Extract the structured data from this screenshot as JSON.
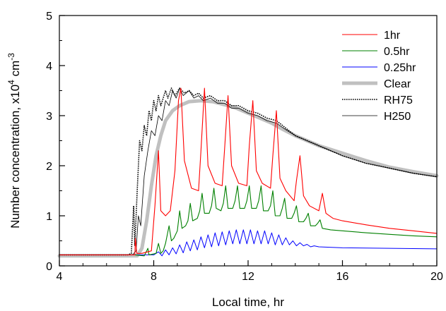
{
  "chart_data": {
    "type": "line",
    "title": "",
    "xlabel": "Local time, hr",
    "ylabel": {
      "prefix": "Number concentration, x10",
      "sup1": "4",
      "mid": " cm",
      "sup2": "-3"
    },
    "xlim": [
      4,
      20
    ],
    "ylim": [
      0,
      5
    ],
    "xticks": [
      4,
      8,
      12,
      16,
      20
    ],
    "yticks": [
      0,
      1,
      2,
      3,
      4,
      5
    ],
    "grid": false,
    "legend_position": "top-right",
    "series": [
      {
        "name": "1hr",
        "color": "#ff0000",
        "style": "solid",
        "width": 1.1,
        "points": [
          [
            4,
            0.22
          ],
          [
            7.0,
            0.22
          ],
          [
            7.2,
            0.22
          ],
          [
            7.22,
            0.55
          ],
          [
            7.28,
            0.25
          ],
          [
            7.5,
            0.25
          ],
          [
            7.9,
            0.3
          ],
          [
            8.05,
            1.2
          ],
          [
            8.2,
            2.3
          ],
          [
            8.3,
            1.1
          ],
          [
            8.5,
            1.0
          ],
          [
            8.7,
            1.1
          ],
          [
            8.9,
            1.9
          ],
          [
            9.05,
            3.3
          ],
          [
            9.15,
            3.55
          ],
          [
            9.3,
            2.1
          ],
          [
            9.6,
            1.55
          ],
          [
            9.9,
            1.5
          ],
          [
            10.0,
            2.3
          ],
          [
            10.15,
            3.55
          ],
          [
            10.3,
            2.0
          ],
          [
            10.6,
            1.65
          ],
          [
            10.9,
            1.6
          ],
          [
            11.0,
            2.3
          ],
          [
            11.15,
            3.4
          ],
          [
            11.3,
            2.0
          ],
          [
            11.6,
            1.65
          ],
          [
            11.95,
            1.6
          ],
          [
            12.05,
            2.4
          ],
          [
            12.2,
            3.3
          ],
          [
            12.35,
            1.9
          ],
          [
            12.6,
            1.65
          ],
          [
            12.95,
            1.55
          ],
          [
            13.05,
            2.2
          ],
          [
            13.2,
            3.1
          ],
          [
            13.35,
            1.75
          ],
          [
            13.6,
            1.5
          ],
          [
            13.95,
            1.3
          ],
          [
            14.05,
            1.7
          ],
          [
            14.2,
            2.2
          ],
          [
            14.35,
            1.4
          ],
          [
            14.6,
            1.2
          ],
          [
            15.0,
            1.1
          ],
          [
            15.15,
            1.45
          ],
          [
            15.3,
            1.05
          ],
          [
            15.6,
            0.95
          ],
          [
            16.0,
            0.9
          ],
          [
            17.0,
            0.82
          ],
          [
            18.0,
            0.75
          ],
          [
            19.0,
            0.7
          ],
          [
            20,
            0.65
          ]
        ]
      },
      {
        "name": "0.5hr",
        "color": "#008000",
        "style": "solid",
        "width": 1.1,
        "points": [
          [
            4,
            0.22
          ],
          [
            7.2,
            0.22
          ],
          [
            7.6,
            0.2
          ],
          [
            7.75,
            0.35
          ],
          [
            7.8,
            0.22
          ],
          [
            8.1,
            0.25
          ],
          [
            8.2,
            0.45
          ],
          [
            8.3,
            0.25
          ],
          [
            8.4,
            0.3
          ],
          [
            8.5,
            0.45
          ],
          [
            8.65,
            0.8
          ],
          [
            8.75,
            0.5
          ],
          [
            8.85,
            0.55
          ],
          [
            9.0,
            0.7
          ],
          [
            9.1,
            1.1
          ],
          [
            9.2,
            0.75
          ],
          [
            9.35,
            0.8
          ],
          [
            9.45,
            0.9
          ],
          [
            9.55,
            1.25
          ],
          [
            9.65,
            0.9
          ],
          [
            9.85,
            0.95
          ],
          [
            9.95,
            1.1
          ],
          [
            10.05,
            1.45
          ],
          [
            10.15,
            1.05
          ],
          [
            10.35,
            1.05
          ],
          [
            10.45,
            1.2
          ],
          [
            10.55,
            1.55
          ],
          [
            10.65,
            1.15
          ],
          [
            10.85,
            1.1
          ],
          [
            10.95,
            1.25
          ],
          [
            11.05,
            1.6
          ],
          [
            11.15,
            1.15
          ],
          [
            11.35,
            1.15
          ],
          [
            11.45,
            1.3
          ],
          [
            11.55,
            1.6
          ],
          [
            11.65,
            1.15
          ],
          [
            11.85,
            1.15
          ],
          [
            11.95,
            1.3
          ],
          [
            12.05,
            1.6
          ],
          [
            12.15,
            1.15
          ],
          [
            12.35,
            1.15
          ],
          [
            12.45,
            1.3
          ],
          [
            12.55,
            1.6
          ],
          [
            12.65,
            1.1
          ],
          [
            12.85,
            1.1
          ],
          [
            12.95,
            1.2
          ],
          [
            13.05,
            1.5
          ],
          [
            13.15,
            1.0
          ],
          [
            13.35,
            1.0
          ],
          [
            13.45,
            1.15
          ],
          [
            13.55,
            1.35
          ],
          [
            13.65,
            0.95
          ],
          [
            13.85,
            0.95
          ],
          [
            13.95,
            1.05
          ],
          [
            14.05,
            1.2
          ],
          [
            14.15,
            0.88
          ],
          [
            14.35,
            0.88
          ],
          [
            14.45,
            0.95
          ],
          [
            14.55,
            1.05
          ],
          [
            14.65,
            0.8
          ],
          [
            14.85,
            0.8
          ],
          [
            14.95,
            0.85
          ],
          [
            15.05,
            0.92
          ],
          [
            15.15,
            0.75
          ],
          [
            15.5,
            0.72
          ],
          [
            16.0,
            0.7
          ],
          [
            17.0,
            0.66
          ],
          [
            18.0,
            0.63
          ],
          [
            19.0,
            0.6
          ],
          [
            20,
            0.58
          ]
        ]
      },
      {
        "name": "0.25hr",
        "color": "#0000ff",
        "style": "solid",
        "width": 1.0,
        "points": [
          [
            4,
            0.22
          ],
          [
            7.5,
            0.22
          ],
          [
            8.0,
            0.22
          ],
          [
            8.2,
            0.28
          ],
          [
            8.35,
            0.2
          ],
          [
            8.5,
            0.32
          ],
          [
            8.65,
            0.22
          ],
          [
            8.8,
            0.36
          ],
          [
            8.95,
            0.24
          ],
          [
            9.1,
            0.42
          ],
          [
            9.25,
            0.26
          ],
          [
            9.4,
            0.48
          ],
          [
            9.55,
            0.3
          ],
          [
            9.7,
            0.52
          ],
          [
            9.85,
            0.32
          ],
          [
            10.0,
            0.58
          ],
          [
            10.15,
            0.36
          ],
          [
            10.3,
            0.62
          ],
          [
            10.45,
            0.38
          ],
          [
            10.6,
            0.66
          ],
          [
            10.75,
            0.4
          ],
          [
            10.9,
            0.68
          ],
          [
            11.05,
            0.42
          ],
          [
            11.2,
            0.7
          ],
          [
            11.35,
            0.44
          ],
          [
            11.5,
            0.72
          ],
          [
            11.65,
            0.44
          ],
          [
            11.8,
            0.72
          ],
          [
            11.95,
            0.44
          ],
          [
            12.1,
            0.72
          ],
          [
            12.25,
            0.44
          ],
          [
            12.4,
            0.7
          ],
          [
            12.55,
            0.44
          ],
          [
            12.7,
            0.7
          ],
          [
            12.85,
            0.44
          ],
          [
            13.0,
            0.66
          ],
          [
            13.15,
            0.42
          ],
          [
            13.3,
            0.62
          ],
          [
            13.45,
            0.42
          ],
          [
            13.6,
            0.56
          ],
          [
            13.75,
            0.42
          ],
          [
            13.9,
            0.5
          ],
          [
            14.05,
            0.4
          ],
          [
            14.2,
            0.46
          ],
          [
            14.35,
            0.4
          ],
          [
            14.5,
            0.43
          ],
          [
            14.65,
            0.38
          ],
          [
            14.8,
            0.4
          ],
          [
            15.0,
            0.38
          ],
          [
            16.0,
            0.36
          ],
          [
            18.0,
            0.35
          ],
          [
            20,
            0.34
          ]
        ]
      },
      {
        "name": "Clear",
        "color": "#c0c0c0",
        "style": "solid",
        "width": 5,
        "points": [
          [
            4,
            0.2
          ],
          [
            7.0,
            0.2
          ],
          [
            7.3,
            0.2
          ],
          [
            7.5,
            0.35
          ],
          [
            7.7,
            0.9
          ],
          [
            7.9,
            1.6
          ],
          [
            8.1,
            2.2
          ],
          [
            8.3,
            2.6
          ],
          [
            8.5,
            2.9
          ],
          [
            8.8,
            3.1
          ],
          [
            9.1,
            3.2
          ],
          [
            9.5,
            3.28
          ],
          [
            10.0,
            3.3
          ],
          [
            10.5,
            3.28
          ],
          [
            11.0,
            3.22
          ],
          [
            11.5,
            3.15
          ],
          [
            12.0,
            3.05
          ],
          [
            12.5,
            2.95
          ],
          [
            13.0,
            2.85
          ],
          [
            13.5,
            2.72
          ],
          [
            14.0,
            2.6
          ],
          [
            15.0,
            2.4
          ],
          [
            16.0,
            2.25
          ],
          [
            17.0,
            2.1
          ],
          [
            18.0,
            1.97
          ],
          [
            19.0,
            1.88
          ],
          [
            20,
            1.8
          ]
        ]
      },
      {
        "name": "RH75",
        "color": "#000000",
        "style": "dotted",
        "width": 1.6,
        "points": [
          [
            4,
            0.22
          ],
          [
            6.9,
            0.22
          ],
          [
            7.05,
            0.25
          ],
          [
            7.15,
            1.2
          ],
          [
            7.2,
            0.4
          ],
          [
            7.3,
            1.5
          ],
          [
            7.4,
            2.5
          ],
          [
            7.5,
            2.3
          ],
          [
            7.6,
            2.8
          ],
          [
            7.7,
            2.6
          ],
          [
            7.8,
            3.1
          ],
          [
            7.9,
            2.9
          ],
          [
            8.0,
            3.3
          ],
          [
            8.1,
            3.1
          ],
          [
            8.2,
            3.4
          ],
          [
            8.3,
            3.2
          ],
          [
            8.5,
            3.5
          ],
          [
            8.6,
            3.35
          ],
          [
            8.75,
            3.55
          ],
          [
            8.9,
            3.4
          ],
          [
            9.1,
            3.55
          ],
          [
            9.3,
            3.45
          ],
          [
            9.5,
            3.5
          ],
          [
            9.7,
            3.4
          ],
          [
            9.9,
            3.45
          ],
          [
            10.1,
            3.35
          ],
          [
            10.4,
            3.4
          ],
          [
            10.7,
            3.3
          ],
          [
            11.0,
            3.3
          ],
          [
            11.3,
            3.2
          ],
          [
            11.6,
            3.2
          ],
          [
            12.0,
            3.1
          ],
          [
            12.4,
            3.05
          ],
          [
            12.8,
            2.95
          ],
          [
            13.2,
            2.9
          ],
          [
            13.6,
            2.75
          ],
          [
            14.0,
            2.6
          ],
          [
            15.0,
            2.4
          ],
          [
            16.0,
            2.2
          ],
          [
            17.0,
            2.05
          ],
          [
            18.0,
            1.95
          ],
          [
            19.0,
            1.85
          ],
          [
            20,
            1.78
          ]
        ]
      },
      {
        "name": "H250",
        "color": "#000000",
        "style": "solid",
        "width": 0.8,
        "points": [
          [
            4,
            0.22
          ],
          [
            7.1,
            0.22
          ],
          [
            7.25,
            0.3
          ],
          [
            7.35,
            1.0
          ],
          [
            7.45,
            0.8
          ],
          [
            7.6,
            1.8
          ],
          [
            7.75,
            2.3
          ],
          [
            7.9,
            2.7
          ],
          [
            8.05,
            2.6
          ],
          [
            8.2,
            3.0
          ],
          [
            8.35,
            2.9
          ],
          [
            8.5,
            3.3
          ],
          [
            8.65,
            3.2
          ],
          [
            8.8,
            3.5
          ],
          [
            8.95,
            3.35
          ],
          [
            9.1,
            3.55
          ],
          [
            9.25,
            3.4
          ],
          [
            9.5,
            3.5
          ],
          [
            9.7,
            3.35
          ],
          [
            9.9,
            3.4
          ],
          [
            10.1,
            3.3
          ],
          [
            10.4,
            3.35
          ],
          [
            10.7,
            3.25
          ],
          [
            11.0,
            3.25
          ],
          [
            11.3,
            3.15
          ],
          [
            11.6,
            3.15
          ],
          [
            12.0,
            3.05
          ],
          [
            12.4,
            3.0
          ],
          [
            12.8,
            2.9
          ],
          [
            13.2,
            2.85
          ],
          [
            13.6,
            2.72
          ],
          [
            14.0,
            2.6
          ],
          [
            15.0,
            2.4
          ],
          [
            16.0,
            2.2
          ],
          [
            17.0,
            2.05
          ],
          [
            18.0,
            1.95
          ],
          [
            19.0,
            1.85
          ],
          [
            20,
            1.78
          ]
        ]
      }
    ]
  }
}
